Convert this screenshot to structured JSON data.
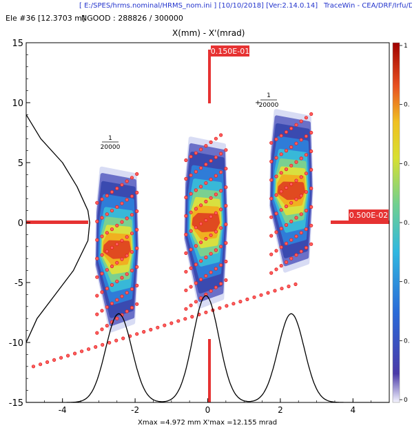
{
  "header": {
    "path": "[ E:/SPES/hrms.nominal/HRMS_nom.ini ] [10/10/2018] [Ver:2.14.0.14]",
    "tracewin": "TraceWin - CEA/DRF/Irfu/DACM",
    "element": "Ele #36 [12.3703 m]",
    "ngood": "NGOOD : 288826 / 300000"
  },
  "footer": "Xmax =4.972 mm  X'max =12.155 mrad",
  "chart_data": {
    "type": "scatter",
    "title": "X(mm) - X'(mrad)",
    "xlim": [
      -5,
      5
    ],
    "ylim": [
      -15,
      15
    ],
    "xticks": [
      -4,
      -2,
      0,
      2,
      4
    ],
    "yticks": [
      -15,
      -10,
      -5,
      0,
      5,
      10,
      15
    ],
    "grid": false,
    "colorbar": {
      "ticks": [
        "1",
        "0.",
        "0.",
        "0.",
        "0.",
        "0.",
        "0"
      ],
      "colors": [
        "#3a2f9a",
        "#2d5fd0",
        "#2eb0e0",
        "#5fd0a0",
        "#c8e040",
        "#f0d020",
        "#f08020",
        "#d02020",
        "#a00000"
      ]
    },
    "annotations": {
      "top_value": "0.150E-01",
      "right_value": "0.500E-02",
      "fraction_left_num": "1",
      "fraction_left_den": "20000",
      "fraction_right_num": "1",
      "fraction_right_den": "20000"
    },
    "clusters": [
      {
        "name": "cluster-left",
        "x_center": -2.5,
        "y_center": -2.0,
        "x_halfwidth": 0.55,
        "y_top": 4.5,
        "y_bottom": -9.0,
        "tilt": -0.6
      },
      {
        "name": "cluster-middle",
        "x_center": -0.05,
        "y_center": 0.0,
        "x_halfwidth": 0.55,
        "y_top": 7.0,
        "y_bottom": -7.0,
        "tilt": -0.6
      },
      {
        "name": "cluster-right",
        "x_center": 2.3,
        "y_center": 2.5,
        "x_halfwidth": 0.55,
        "y_top": 9.3,
        "y_bottom": -4.0,
        "tilt": -0.6
      }
    ],
    "x_profile_peaks": [
      {
        "x": -2.45,
        "y": -7.6
      },
      {
        "x": -0.05,
        "y": -6.1
      },
      {
        "x": 2.3,
        "y": -7.6
      }
    ],
    "y_profile": [
      {
        "x": -5.0,
        "y": 9.0
      },
      {
        "x": -4.6,
        "y": 7.0
      },
      {
        "x": -4.0,
        "y": 5.0
      },
      {
        "x": -3.6,
        "y": 3.0
      },
      {
        "x": -3.3,
        "y": 1.0
      },
      {
        "x": -3.25,
        "y": 0.0
      },
      {
        "x": -3.3,
        "y": -1.5
      },
      {
        "x": -3.7,
        "y": -4.0
      },
      {
        "x": -4.2,
        "y": -6.0
      },
      {
        "x": -4.7,
        "y": -8.0
      },
      {
        "x": -5.0,
        "y": -10.0
      }
    ],
    "marker_line": {
      "x_start": -4.8,
      "y_start": -12.0,
      "slope": 3.3
    }
  }
}
